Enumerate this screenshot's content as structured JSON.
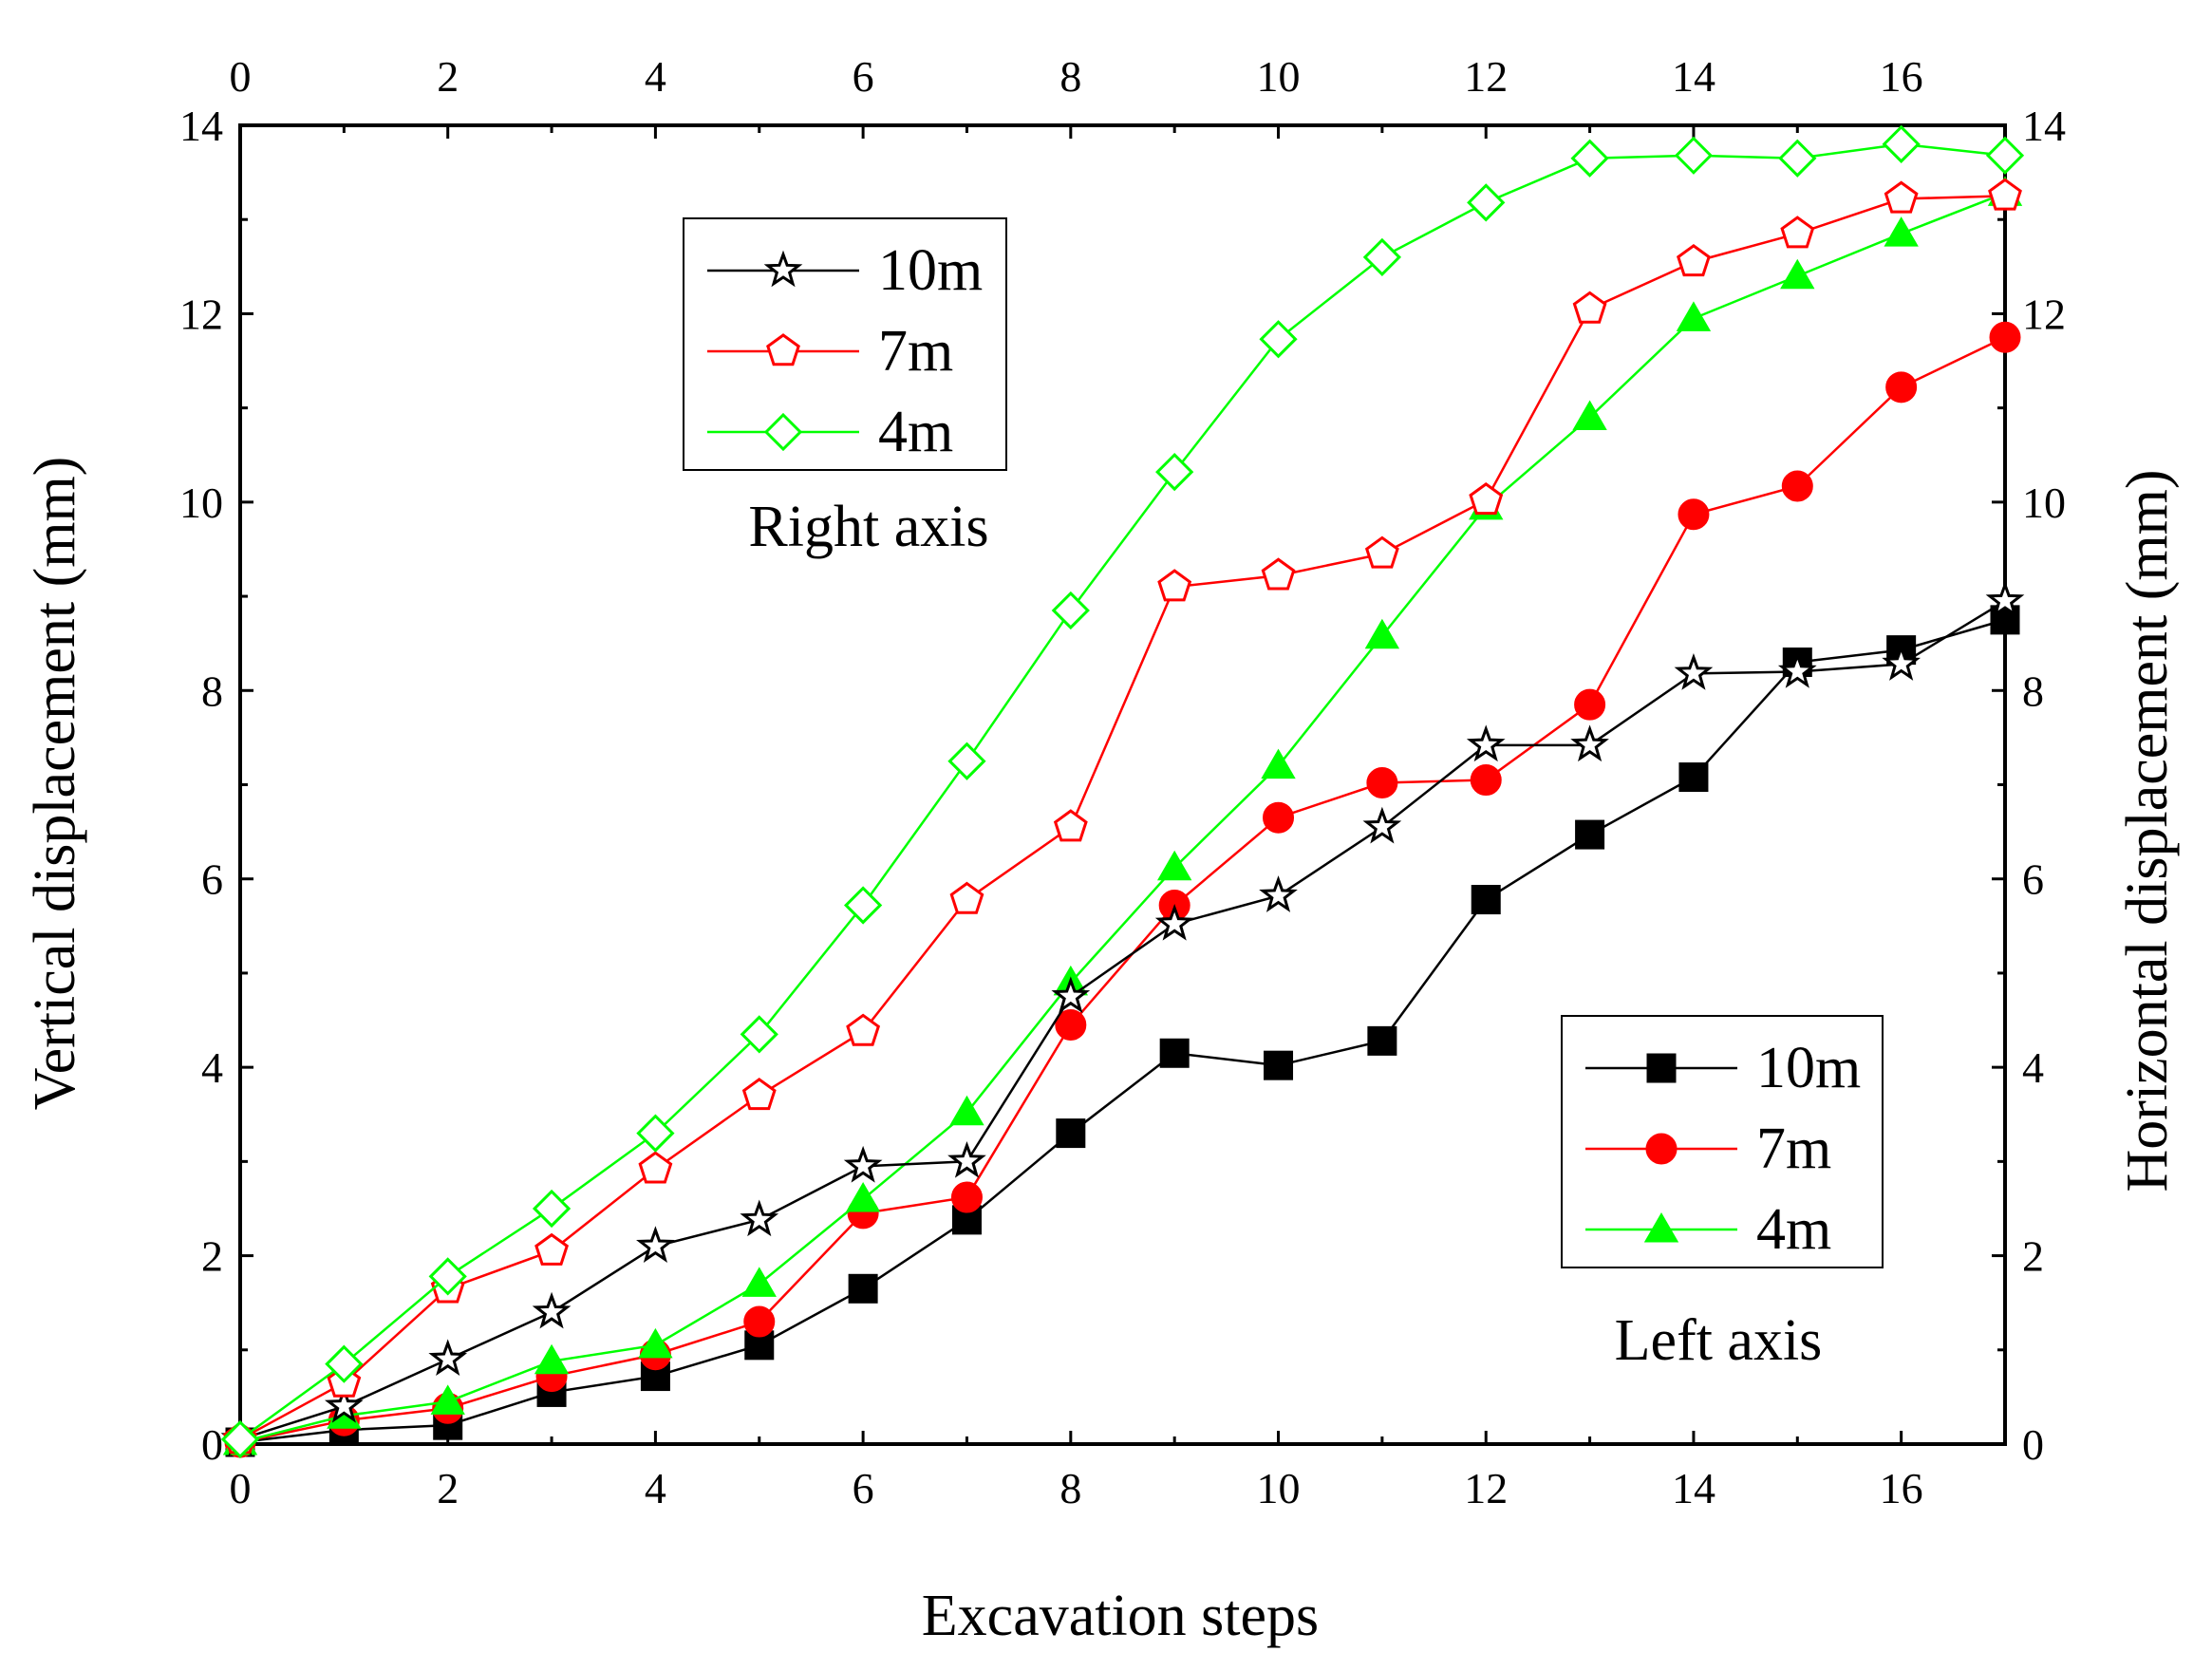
{
  "chart_data": {
    "type": "line",
    "x": [
      0,
      1,
      2,
      3,
      4,
      5,
      6,
      7,
      8,
      9,
      10,
      11,
      12,
      13,
      14,
      15,
      16,
      17
    ],
    "xlabel": "Excavation steps",
    "ylabel_left": "Vertical  displacement (mm)",
    "ylabel_right": "Horizontal displacement (mm)",
    "xlim": [
      0,
      17
    ],
    "ylim_left": [
      0,
      14
    ],
    "ylim_right": [
      0,
      14
    ],
    "xticks": [
      0,
      2,
      4,
      6,
      8,
      10,
      12,
      14,
      16
    ],
    "yticks": [
      0,
      2,
      4,
      6,
      8,
      10,
      12,
      14
    ],
    "series": [
      {
        "name": "10m",
        "axis": "right",
        "marker": "star-open",
        "color": "#000000",
        "values": [
          0.05,
          0.4,
          0.9,
          1.4,
          2.1,
          2.38,
          2.95,
          3.0,
          4.75,
          5.52,
          5.82,
          6.55,
          7.42,
          7.42,
          8.18,
          8.2,
          8.28,
          8.95
        ]
      },
      {
        "name": "7m",
        "axis": "right",
        "marker": "pentagon-open",
        "color": "#ff0000",
        "values": [
          0.05,
          0.65,
          1.65,
          2.05,
          2.92,
          3.7,
          4.38,
          5.78,
          6.55,
          9.1,
          9.22,
          9.45,
          10.02,
          12.05,
          12.55,
          12.85,
          13.22,
          13.25
        ]
      },
      {
        "name": "4m",
        "axis": "right",
        "marker": "diamond-open",
        "color": "#00ff00",
        "values": [
          0.05,
          0.85,
          1.78,
          2.5,
          3.3,
          4.35,
          5.72,
          7.25,
          8.85,
          10.32,
          11.73,
          12.6,
          13.18,
          13.65,
          13.68,
          13.65,
          13.8,
          13.68
        ]
      },
      {
        "name": "10m",
        "axis": "left",
        "marker": "square-filled",
        "color": "#000000",
        "values": [
          0.02,
          0.15,
          0.2,
          0.55,
          0.72,
          1.05,
          1.65,
          2.38,
          3.3,
          4.15,
          4.02,
          4.28,
          5.78,
          6.47,
          7.08,
          8.3,
          8.43,
          8.75
        ]
      },
      {
        "name": "7m",
        "axis": "left",
        "marker": "circle-filled",
        "color": "#ff0000",
        "values": [
          0.02,
          0.25,
          0.38,
          0.72,
          0.95,
          1.3,
          2.45,
          2.62,
          4.45,
          5.72,
          6.65,
          7.02,
          7.05,
          7.85,
          9.87,
          10.17,
          11.22,
          11.75
        ]
      },
      {
        "name": "4m",
        "axis": "left",
        "marker": "triangle-filled",
        "color": "#00ff00",
        "values": [
          0.02,
          0.3,
          0.45,
          0.88,
          1.05,
          1.7,
          2.6,
          3.52,
          4.9,
          6.12,
          7.2,
          8.58,
          9.95,
          10.9,
          11.95,
          12.4,
          12.85,
          13.28
        ]
      }
    ],
    "legend_top": {
      "placement": "top-left",
      "labels": [
        "10m",
        "7m",
        "4m"
      ]
    },
    "legend_bottom": {
      "placement": "bottom-right",
      "labels": [
        "10m",
        "7m",
        "4m"
      ]
    },
    "annotations": {
      "right_axis": "Right axis",
      "left_axis": "Left axis"
    }
  }
}
